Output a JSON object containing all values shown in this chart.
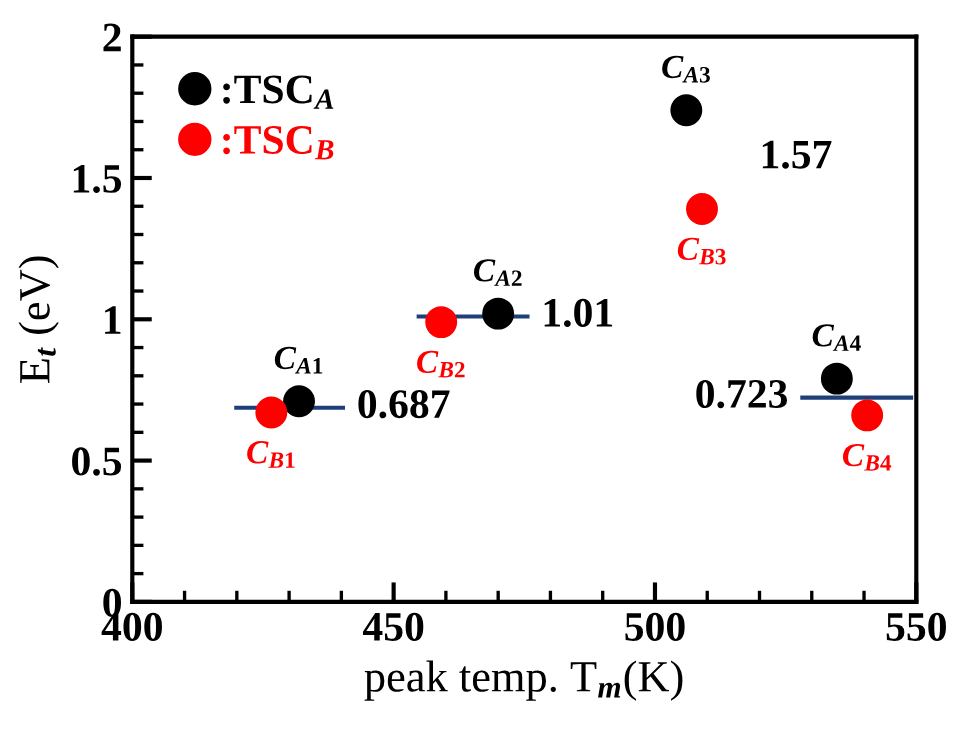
{
  "chart_data": {
    "type": "scatter",
    "xlabel": "peak temp. T$_{m}$(K)",
    "ylabel": "E$_{t}$ (eV)",
    "xlim": [
      400,
      550
    ],
    "xticks": [
      400,
      450,
      500,
      550
    ],
    "ylim": [
      0,
      2
    ],
    "yticks": [
      0,
      0.5,
      1,
      1.5,
      2
    ],
    "grid": false,
    "legend": "top left",
    "marker": "circle",
    "series": [
      {
        "name": ":TSC$_{A}$",
        "color": "#000000",
        "x": [
          431.9,
          470,
          506,
          534.8
        ],
        "values": [
          0.71,
          1.02,
          1.74,
          0.79
        ],
        "value_labels": [
          "C$_{A1}$",
          "C$_{A2}$",
          "C$_{A3}$",
          "C$_{A4}$"
        ]
      },
      {
        "name": ":TSC$_{B}$",
        "color": "#ff0000",
        "x": [
          426.6,
          459.1,
          509,
          540.6
        ],
        "values": [
          0.67,
          0.99,
          1.39,
          0.66
        ],
        "value_labels": [
          "C$_{B1}$",
          "C$_{B2}$",
          "C$_{B3}$",
          "C$_{B4}$"
        ]
      },
      {
        "type": "line",
        "color": "#1f3f7a",
        "marker": "none",
        "x": [
          419.9,
          440.3
        ],
        "values": [
          0.687,
          0.687
        ],
        "value_labels": [
          null,
          "0.687"
        ]
      },
      {
        "type": "line",
        "color": "#1f3f7a",
        "marker": "none",
        "x": [
          454.8,
          475.6
        ],
        "values": [
          1.01,
          1.01
        ],
        "value_labels": [
          null,
          "1.01"
        ]
      },
      {
        "type": "line",
        "color": "#1f3f7a",
        "marker": "none",
        "x": [
          528.2,
          549
        ],
        "values": [
          0.723,
          0.723
        ],
        "value_labels": [
          "0.723",
          null
        ]
      }
    ],
    "annotations": [
      "1.57"
    ]
  }
}
